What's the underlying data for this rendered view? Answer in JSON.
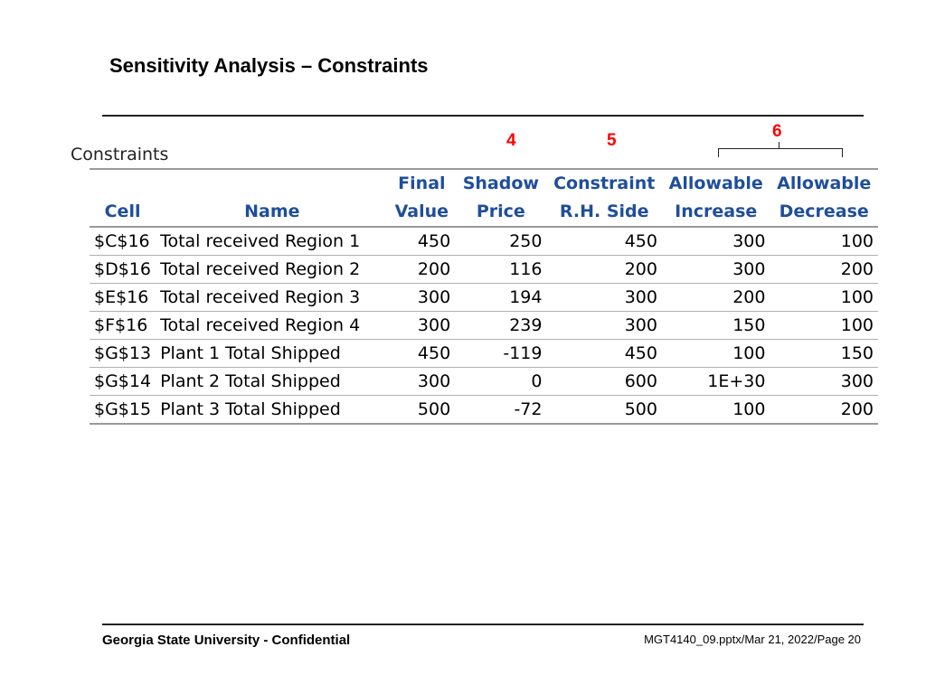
{
  "slide": {
    "title": "Sensitivity Analysis – Constraints"
  },
  "markers": {
    "m4": "4",
    "m5": "5",
    "m6": "6"
  },
  "section_label": "Constraints",
  "table": {
    "headers_top": [
      "",
      "",
      "Final",
      "Shadow",
      "Constraint",
      "Allowable",
      "Allowable"
    ],
    "headers_bottom": [
      "Cell",
      "Name",
      "Value",
      "Price",
      "R.H. Side",
      "Increase",
      "Decrease"
    ],
    "rows": [
      [
        "$C$16",
        "Total received Region 1",
        "450",
        "250",
        "450",
        "300",
        "100"
      ],
      [
        "$D$16",
        "Total received Region 2",
        "200",
        "116",
        "200",
        "300",
        "200"
      ],
      [
        "$E$16",
        "Total received Region 3",
        "300",
        "194",
        "300",
        "200",
        "100"
      ],
      [
        "$F$16",
        "Total received Region 4",
        "300",
        "239",
        "300",
        "150",
        "100"
      ],
      [
        "$G$13",
        "Plant 1 Total Shipped",
        "450",
        "-119",
        "450",
        "100",
        "150"
      ],
      [
        "$G$14",
        "Plant 2 Total Shipped",
        "300",
        "0",
        "600",
        "1E+30",
        "300"
      ],
      [
        "$G$15",
        "Plant 3 Total Shipped",
        "500",
        "-72",
        "500",
        "100",
        "200"
      ]
    ]
  },
  "footer": {
    "left": "Georgia State University - Confidential",
    "right": "MGT4140_09.pptx/Mar 21, 2022/Page 20"
  },
  "colors": {
    "header_text": "#1f4e9b",
    "marker": "#ff0000"
  }
}
